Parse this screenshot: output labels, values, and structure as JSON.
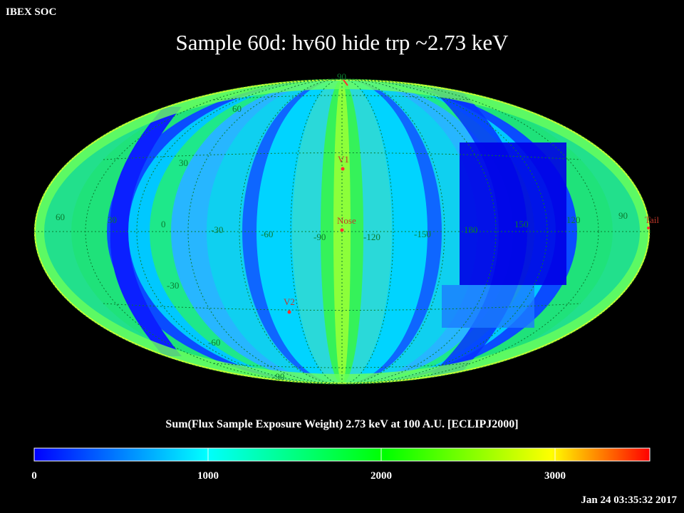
{
  "header": {
    "left_label": "IBEX SOC",
    "timestamp": "Jan 24 03:35:32 2017"
  },
  "title": "Sample 60d: hv60 hide trp ~2.73 keV",
  "map": {
    "projection": "aitoff-ellipse",
    "grid_lat_labels": [
      {
        "text": "90"
      },
      {
        "text": "60"
      },
      {
        "text": "30"
      },
      {
        "text": "-30"
      },
      {
        "text": "-60"
      },
      {
        "text": "-90"
      }
    ],
    "grid_lon_labels": [
      {
        "text": "60"
      },
      {
        "text": "30"
      },
      {
        "text": "0"
      },
      {
        "text": "-30"
      },
      {
        "text": "-60"
      },
      {
        "text": "-90"
      },
      {
        "text": "-120"
      },
      {
        "text": "-150"
      },
      {
        "text": "180"
      },
      {
        "text": "150"
      },
      {
        "text": "120"
      },
      {
        "text": "90"
      }
    ],
    "markers": [
      {
        "label": "V1"
      },
      {
        "label": "Nose"
      },
      {
        "label": "V2"
      },
      {
        "label": "Tail"
      }
    ],
    "marker_color": "#ff3030",
    "grid_color": "#0b7a2f",
    "stripe_colors": [
      "#7cff4a",
      "#20e68a",
      "#00c7ff",
      "#0a44ff",
      "#0000f0"
    ]
  },
  "colorbar": {
    "title": "Sum(Flux Sample Exposure Weight)  2.73 keV at 100 A.U. [ECLIPJ2000]",
    "min": 0,
    "max": 3500,
    "ticks": [
      "0",
      "1000",
      "2000",
      "3000"
    ],
    "stops": [
      "#0000ff",
      "#00ffff",
      "#00ff00",
      "#ffff00",
      "#ff0000"
    ]
  }
}
